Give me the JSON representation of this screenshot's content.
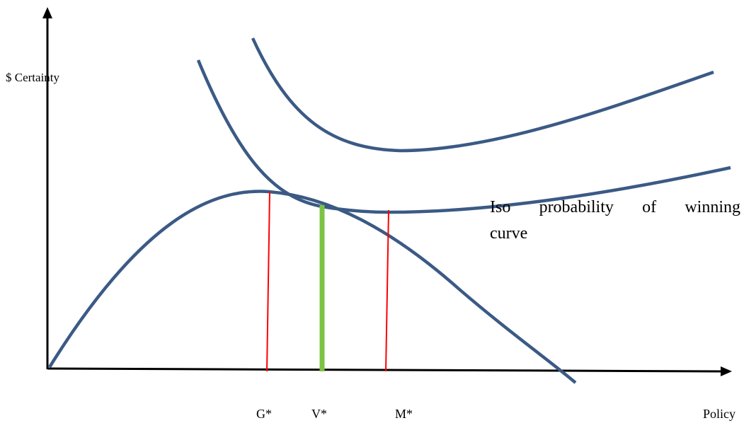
{
  "axes": {
    "y_label": "$ Certainty",
    "x_label": "Policy"
  },
  "markers": {
    "g": "G*",
    "v": "V*",
    "m": "M*"
  },
  "annotation": {
    "words": [
      "Iso",
      "probability",
      "of",
      "winning"
    ],
    "line2": "curve"
  },
  "colors": {
    "curve": "#3b5a85",
    "red_line": "#ff0000",
    "green_line": "#7cc344",
    "axis": "#000000"
  }
}
